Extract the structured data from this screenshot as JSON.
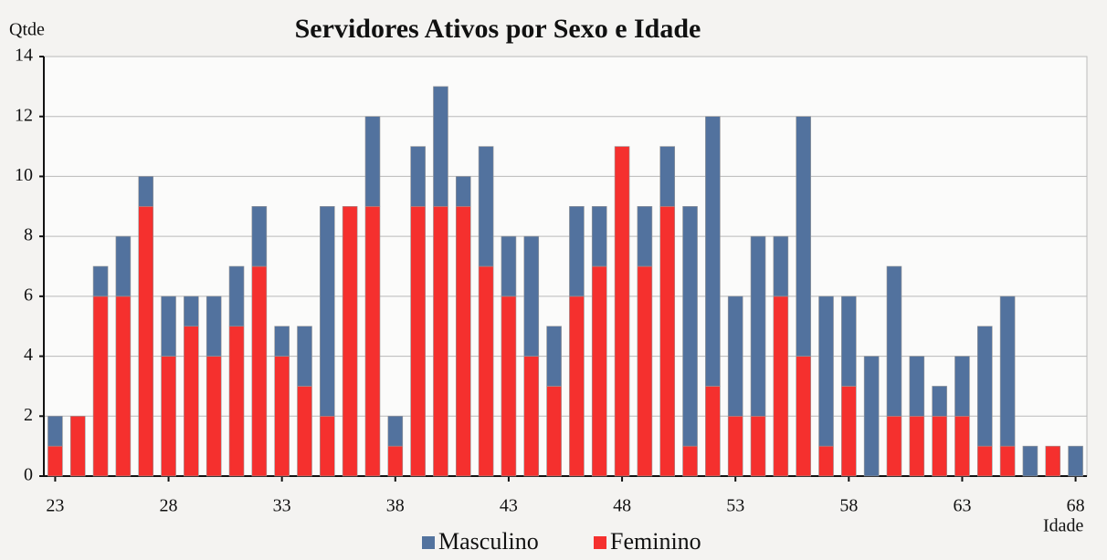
{
  "chart_data": {
    "type": "stacked_bar",
    "title": "Servidores Ativos por Sexo e Idade",
    "y_label": "Qtde",
    "x_label": "Idade",
    "categories": [
      "23",
      null,
      null,
      null,
      null,
      "28",
      null,
      null,
      null,
      null,
      "33",
      null,
      null,
      null,
      null,
      "38",
      null,
      null,
      null,
      null,
      "43",
      null,
      null,
      null,
      null,
      "48",
      null,
      null,
      null,
      null,
      "53",
      null,
      null,
      null,
      null,
      "58",
      null,
      null,
      null,
      null,
      "63",
      null,
      null,
      null,
      null,
      "68"
    ],
    "series": [
      {
        "name": "Feminino",
        "color": "#f5302e",
        "values": [
          1,
          2,
          6,
          6,
          9,
          4,
          5,
          4,
          5,
          7,
          4,
          3,
          2,
          9,
          9,
          1,
          9,
          9,
          9,
          7,
          6,
          4,
          3,
          6,
          7,
          11,
          7,
          9,
          1,
          3,
          2,
          2,
          6,
          4,
          1,
          3,
          0,
          2,
          2,
          2,
          2,
          1,
          1,
          0,
          1,
          0
        ]
      },
      {
        "name": "Masculino",
        "color": "#52729e",
        "values": [
          1,
          0,
          1,
          2,
          1,
          2,
          1,
          2,
          2,
          2,
          1,
          2,
          7,
          0,
          3,
          1,
          2,
          4,
          1,
          4,
          2,
          4,
          2,
          3,
          2,
          0,
          2,
          2,
          8,
          9,
          4,
          6,
          2,
          8,
          5,
          3,
          4,
          5,
          2,
          1,
          2,
          4,
          5,
          1,
          0,
          1
        ]
      }
    ],
    "ylim": [
      0,
      14
    ],
    "yticks": [
      0,
      2,
      4,
      6,
      8,
      10,
      12,
      14
    ],
    "grid": true,
    "legend": "bottom"
  }
}
